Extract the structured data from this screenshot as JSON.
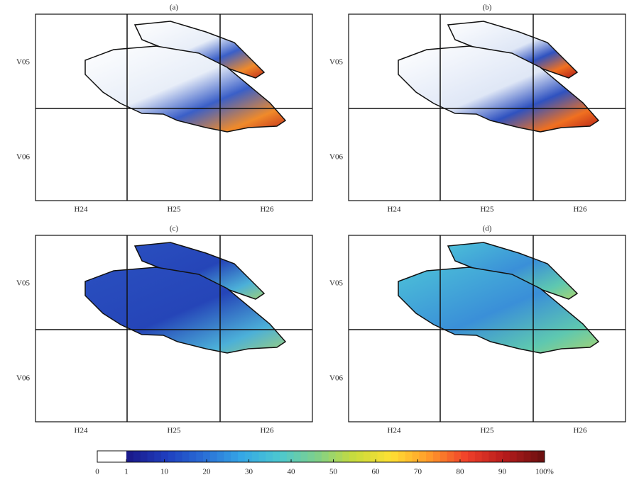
{
  "panels": [
    {
      "label": "(a)"
    },
    {
      "label": "(b)"
    },
    {
      "label": "(c)"
    },
    {
      "label": "(d)"
    }
  ],
  "row_labels": [
    "V05",
    "V06"
  ],
  "col_labels": [
    "H24",
    "H25",
    "H26"
  ],
  "colorbar": {
    "ticks": [
      0,
      1,
      10,
      20,
      30,
      40,
      50,
      60,
      70,
      80,
      90,
      {
        "value": 100,
        "label": "100%"
      }
    ],
    "colors": [
      "#ffffff",
      "#1a1a8c",
      "#1f3fbf",
      "#2a6fd6",
      "#35a8e6",
      "#4cc8d0",
      "#7fd08a",
      "#c8dc3c",
      "#ffe033",
      "#ff9a2a",
      "#f0402a",
      "#b81c1c",
      "#6e1010"
    ]
  }
}
